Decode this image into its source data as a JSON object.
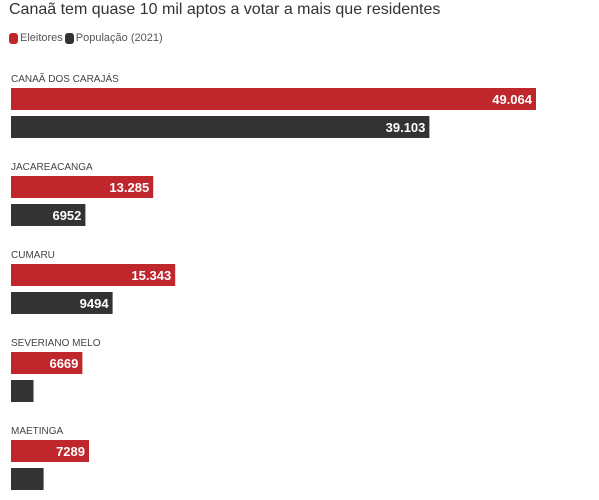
{
  "chart_data": {
    "type": "bar",
    "orientation": "horizontal",
    "title": "Canaã tem quase 10 mil aptos a votar a mais que residentes",
    "categories": [
      "CANAÃ DOS CARAJÁS",
      "JACAREACANGA",
      "CUMARU",
      "SEVERIANO MELO",
      "MAETINGA"
    ],
    "series": [
      {
        "name": "Eleitores",
        "color": "#c0272d",
        "values": [
          49064,
          13285,
          15343,
          6669,
          7289
        ],
        "labels": [
          "49.064",
          "13.285",
          "15.343",
          "6669",
          "7289"
        ]
      },
      {
        "name": "População (2021)",
        "color": "#333333",
        "values": [
          39103,
          6952,
          9494,
          2100,
          3050
        ],
        "labels": [
          "39.103",
          "6952",
          "9494",
          "",
          ""
        ]
      }
    ],
    "xlim": [
      0,
      49064
    ],
    "legend_position": "top-left",
    "grid": false
  }
}
